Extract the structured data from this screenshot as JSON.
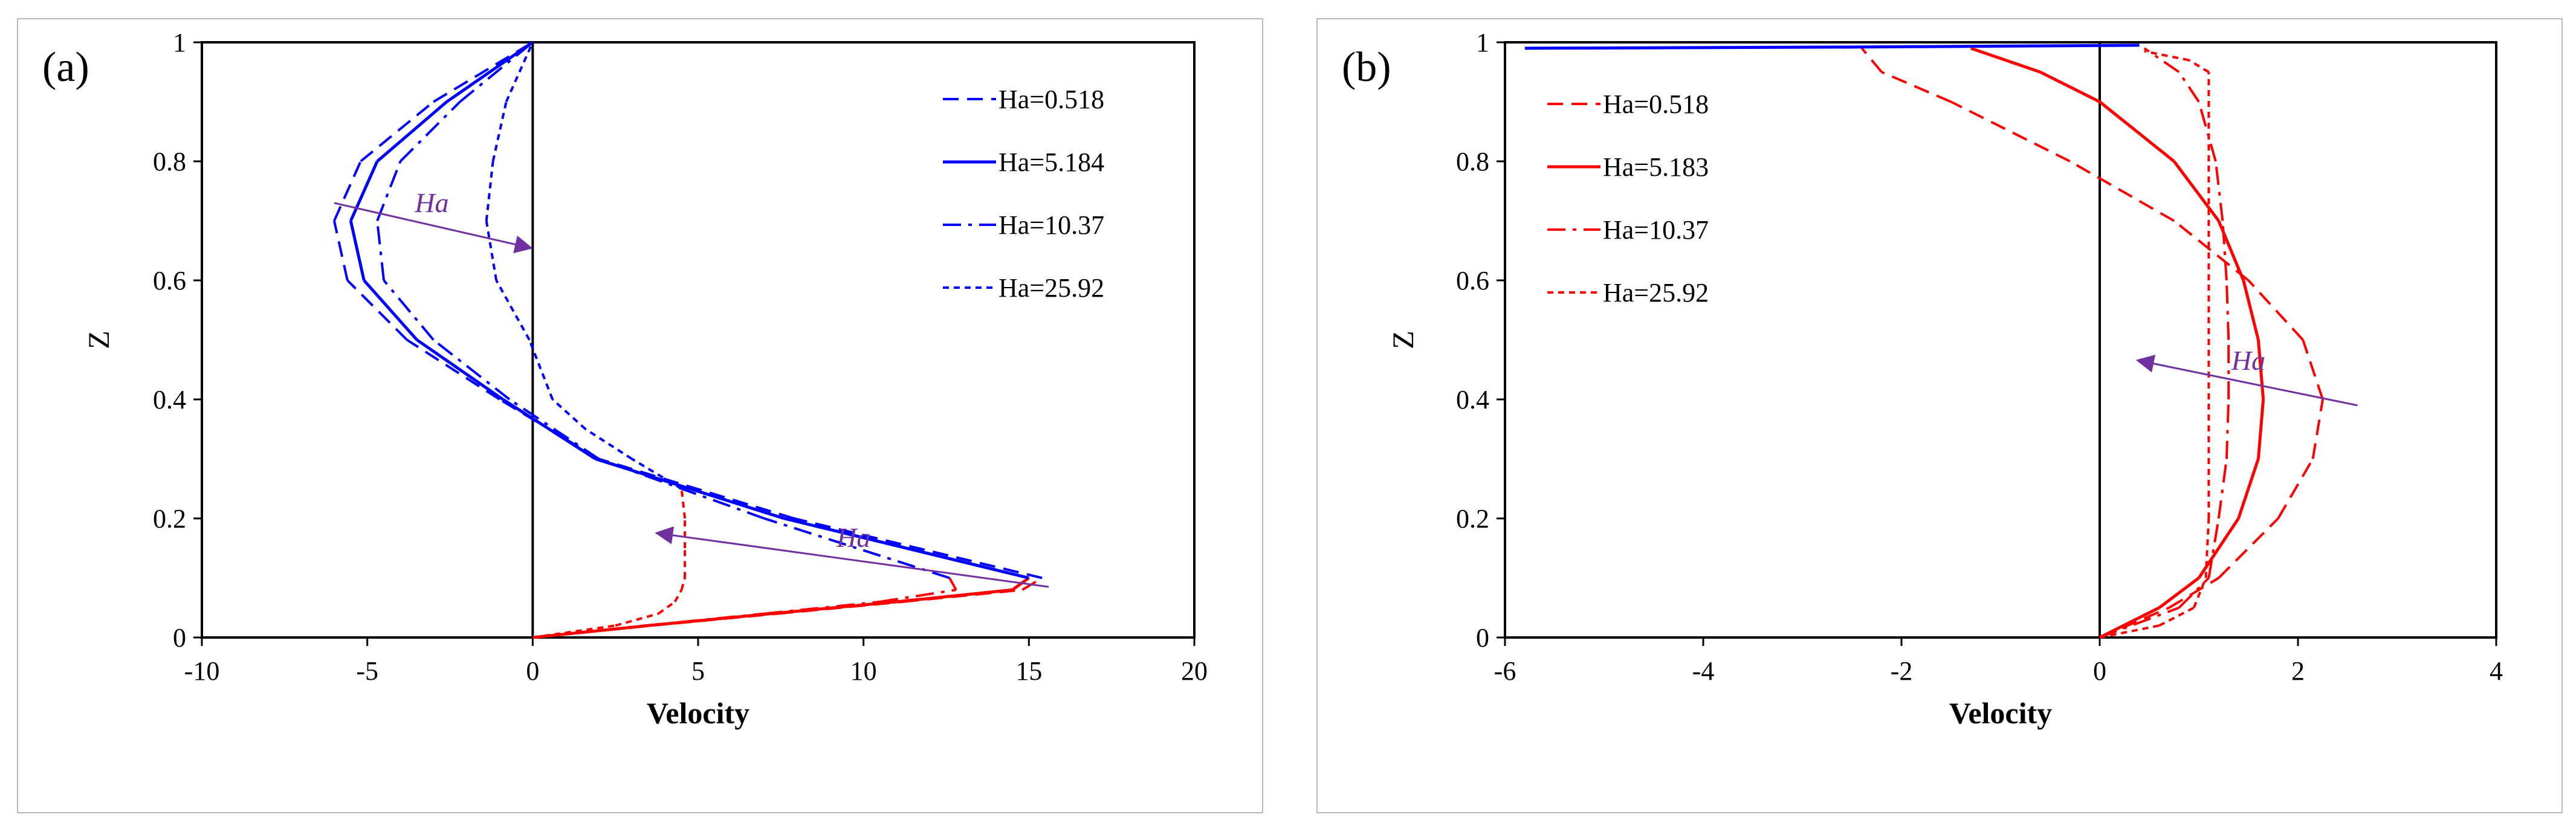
{
  "colors": {
    "blue": "#0000ff",
    "red": "#ff0000",
    "arrow": "#7030a0",
    "axis": "#000000"
  },
  "chart_data": [
    {
      "type": "line",
      "panel_label": "(a)",
      "title": "",
      "xlabel": "Velocity",
      "ylabel": "Z",
      "xlim": [
        -10,
        20
      ],
      "ylim": [
        0,
        1
      ],
      "xticks": [
        -10,
        -5,
        0,
        5,
        10,
        15,
        20
      ],
      "yticks": [
        0,
        0.2,
        0.4,
        0.6,
        0.8,
        1
      ],
      "ytick_labels": [
        "0",
        "0.2",
        "0.4",
        "0.6",
        "0.8",
        "1"
      ],
      "legend": [
        "Ha=0.518",
        "Ha=5.184",
        "Ha=10.37",
        "Ha=25.92"
      ],
      "annotation": {
        "label": "Ha",
        "arrows": [
          {
            "from": [
              -6,
              0.73
            ],
            "to": [
              -0.1,
              0.655
            ]
          },
          {
            "from": [
              15.6,
              0.085
            ],
            "to": [
              3.8,
              0.175
            ]
          }
        ]
      },
      "series": [
        {
          "name": "Ha=0.518",
          "dash": "dash",
          "z": [
            0,
            0.02,
            0.04,
            0.06,
            0.08,
            0.1,
            0.2,
            0.3,
            0.4,
            0.5,
            0.6,
            0.7,
            0.8,
            0.9,
            1
          ],
          "v": [
            0,
            3.6,
            7.4,
            11.2,
            14.8,
            15.4,
            7.9,
            2.0,
            -1.0,
            -3.8,
            -5.6,
            -6.0,
            -5.2,
            -3.0,
            0
          ]
        },
        {
          "name": "Ha=5.184",
          "dash": "solid",
          "z": [
            0,
            0.02,
            0.04,
            0.06,
            0.08,
            0.1,
            0.2,
            0.3,
            0.4,
            0.5,
            0.6,
            0.7,
            0.8,
            0.9,
            1
          ],
          "v": [
            0,
            3.5,
            7.2,
            11.0,
            14.5,
            15.0,
            7.6,
            1.9,
            -0.9,
            -3.5,
            -5.1,
            -5.5,
            -4.7,
            -2.6,
            0
          ]
        },
        {
          "name": "Ha=10.37",
          "dash": "dashdot",
          "z": [
            0,
            0.02,
            0.04,
            0.06,
            0.08,
            0.1,
            0.2,
            0.3,
            0.4,
            0.5,
            0.6,
            0.7,
            0.8,
            0.9,
            1
          ],
          "v": [
            0,
            3.4,
            7.0,
            10.5,
            12.8,
            12.6,
            7.0,
            2.0,
            -0.7,
            -3.0,
            -4.5,
            -4.7,
            -4.0,
            -2.2,
            0
          ]
        },
        {
          "name": "Ha=25.92",
          "dash": "dot",
          "z": [
            0,
            0.02,
            0.04,
            0.06,
            0.08,
            0.1,
            0.15,
            0.2,
            0.25,
            0.3,
            0.35,
            0.4,
            0.5,
            0.6,
            0.7,
            0.8,
            0.9,
            1
          ],
          "v": [
            0,
            2.5,
            3.8,
            4.3,
            4.5,
            4.6,
            4.6,
            4.6,
            4.5,
            3.0,
            1.6,
            0.6,
            -0.1,
            -1.1,
            -1.4,
            -1.2,
            -0.8,
            0
          ]
        }
      ]
    },
    {
      "type": "line",
      "panel_label": "(b)",
      "title": "",
      "xlabel": "Velocity",
      "ylabel": "Z",
      "xlim": [
        -6,
        4
      ],
      "ylim": [
        0,
        1
      ],
      "xticks": [
        -6,
        -4,
        -2,
        0,
        2,
        4
      ],
      "yticks": [
        0,
        0.2,
        0.4,
        0.6,
        0.8,
        1
      ],
      "ytick_labels": [
        "0",
        "0.2",
        "0.4",
        "0.6",
        "0.8",
        "1"
      ],
      "legend": [
        "Ha=0.518",
        "Ha=5.183",
        "Ha=10.37",
        "Ha=25.92"
      ],
      "annotation": {
        "label": "Ha",
        "arrows": [
          {
            "from": [
              2.6,
              0.39
            ],
            "to": [
              0.4,
              0.465
            ]
          }
        ]
      },
      "series": [
        {
          "name": "Ha=0.518",
          "dash": "dash",
          "z": [
            0,
            0.05,
            0.1,
            0.2,
            0.3,
            0.4,
            0.5,
            0.6,
            0.7,
            0.8,
            0.9,
            0.95,
            0.99
          ],
          "v": [
            0,
            0.7,
            1.2,
            1.8,
            2.15,
            2.25,
            2.05,
            1.5,
            0.75,
            -0.3,
            -1.5,
            -2.2,
            -2.4
          ]
        },
        {
          "name": "Ha=5.183",
          "dash": "solid",
          "z": [
            0,
            0.05,
            0.1,
            0.2,
            0.3,
            0.4,
            0.5,
            0.6,
            0.7,
            0.8,
            0.9,
            0.95,
            0.99
          ],
          "v": [
            0,
            0.6,
            1.0,
            1.4,
            1.6,
            1.65,
            1.6,
            1.45,
            1.2,
            0.75,
            0.0,
            -0.6,
            -1.3
          ]
        },
        {
          "name": "Ha=10.37",
          "dash": "dashdot",
          "z": [
            0,
            0.05,
            0.1,
            0.2,
            0.3,
            0.4,
            0.5,
            0.6,
            0.7,
            0.8,
            0.9,
            0.95,
            0.99
          ],
          "v": [
            0,
            0.8,
            1.1,
            1.2,
            1.28,
            1.3,
            1.3,
            1.28,
            1.24,
            1.17,
            1.0,
            0.8,
            0.45
          ]
        },
        {
          "name": "Ha=25.92",
          "dash": "dot",
          "z": [
            0,
            0.02,
            0.05,
            0.1,
            0.2,
            0.4,
            0.6,
            0.8,
            0.95,
            0.97,
            0.985
          ],
          "v": [
            0,
            0.6,
            0.95,
            1.07,
            1.1,
            1.1,
            1.1,
            1.1,
            1.1,
            0.9,
            0.45
          ]
        },
        {
          "name": "blue",
          "dash": "solid",
          "z": [
            0.99,
            0.992,
            0.995
          ],
          "v": [
            -5.8,
            -2.5,
            0.4
          ]
        }
      ]
    }
  ]
}
